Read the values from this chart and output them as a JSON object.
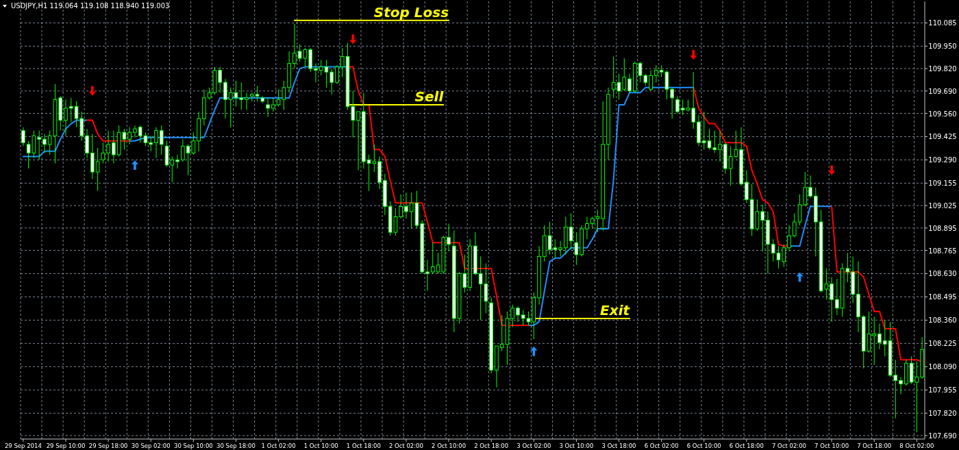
{
  "chart_data": {
    "type": "candlestick",
    "title": "USDJPY,H1 119.064 119.108 118.940 119.003",
    "categories": [
      "29 Sep 2014",
      null,
      null,
      null,
      null,
      null,
      null,
      null,
      "29 Sep 10:00",
      null,
      null,
      null,
      null,
      null,
      null,
      null,
      "29 Sep 18:00",
      null,
      null,
      null,
      null,
      null,
      null,
      null,
      "30 Sep 02:00",
      null,
      null,
      null,
      null,
      null,
      null,
      null,
      "30 Sep 10:00",
      null,
      null,
      null,
      null,
      null,
      null,
      null,
      "30 Sep 18:00",
      null,
      null,
      null,
      null,
      null,
      null,
      null,
      "1 Oct 02:00",
      null,
      null,
      null,
      null,
      null,
      null,
      null,
      "1 Oct 10:00",
      null,
      null,
      null,
      null,
      null,
      null,
      null,
      "1 Oct 18:00",
      null,
      null,
      null,
      null,
      null,
      null,
      null,
      "2 Oct 02:00",
      null,
      null,
      null,
      null,
      null,
      null,
      null,
      "2 Oct 10:00",
      null,
      null,
      null,
      null,
      null,
      null,
      null,
      "2 Oct 18:00",
      null,
      null,
      null,
      null,
      null,
      null,
      null,
      "3 Oct 02:00",
      null,
      null,
      null,
      null,
      null,
      null,
      null,
      "3 Oct 10:00",
      null,
      null,
      null,
      null,
      null,
      null,
      null,
      "3 Oct 18:00",
      null,
      null,
      null,
      null,
      null,
      null,
      null,
      "6 Oct 02:00",
      null,
      null,
      null,
      null,
      null,
      null,
      null,
      "6 Oct 10:00",
      null,
      null,
      null,
      null,
      null,
      null,
      null,
      "6 Oct 18:00",
      null,
      null,
      null,
      null,
      null,
      null,
      null,
      "7 Oct 02:00",
      null,
      null,
      null,
      null,
      null,
      null,
      null,
      "7 Oct 10:00",
      null,
      null,
      null,
      null,
      null,
      null,
      null,
      "7 Oct 18:00",
      null,
      null,
      null,
      null,
      null,
      null,
      null,
      "8 Oct 02:00",
      null
    ],
    "ohlc": [
      [
        109.46,
        109.48,
        109.37,
        109.39
      ],
      [
        109.38,
        109.4,
        109.24,
        109.33
      ],
      [
        109.33,
        109.46,
        109.3,
        109.43
      ],
      [
        109.42,
        109.46,
        109.29,
        109.41
      ],
      [
        109.41,
        109.44,
        109.33,
        109.38
      ],
      [
        109.38,
        109.46,
        109.32,
        109.43
      ],
      [
        109.43,
        109.73,
        109.27,
        109.64
      ],
      [
        109.65,
        109.66,
        109.46,
        109.52
      ],
      [
        109.52,
        109.64,
        109.43,
        109.59
      ],
      [
        109.6,
        109.65,
        109.51,
        109.59
      ],
      [
        109.6,
        109.63,
        109.48,
        109.53
      ],
      [
        109.53,
        109.57,
        109.4,
        109.43
      ],
      [
        109.43,
        109.47,
        109.3,
        109.33
      ],
      [
        109.33,
        109.44,
        109.18,
        109.22
      ],
      [
        109.22,
        109.36,
        109.11,
        109.28
      ],
      [
        109.29,
        109.39,
        109.27,
        109.33
      ],
      [
        109.33,
        109.46,
        109.28,
        109.38
      ],
      [
        109.39,
        109.46,
        109.27,
        109.32
      ],
      [
        109.32,
        109.49,
        109.31,
        109.45
      ],
      [
        109.45,
        109.47,
        109.35,
        109.41
      ],
      [
        109.41,
        109.48,
        109.38,
        109.45
      ],
      [
        109.45,
        109.49,
        109.42,
        109.47
      ],
      [
        109.48,
        109.49,
        109.39,
        109.43
      ],
      [
        109.43,
        109.45,
        109.37,
        109.39
      ],
      [
        109.39,
        109.43,
        109.34,
        109.38
      ],
      [
        109.39,
        109.48,
        109.3,
        109.46
      ],
      [
        109.46,
        109.49,
        109.32,
        109.38
      ],
      [
        109.37,
        109.4,
        109.25,
        109.26
      ],
      [
        109.26,
        109.31,
        109.16,
        109.29
      ],
      [
        109.29,
        109.32,
        109.24,
        109.28
      ],
      [
        109.29,
        109.41,
        109.28,
        109.37
      ],
      [
        109.37,
        109.38,
        109.2,
        109.33
      ],
      [
        109.33,
        109.45,
        109.32,
        109.4
      ],
      [
        109.4,
        109.57,
        109.34,
        109.53
      ],
      [
        109.53,
        109.7,
        109.49,
        109.65
      ],
      [
        109.65,
        109.71,
        109.64,
        109.68
      ],
      [
        109.68,
        109.83,
        109.67,
        109.81
      ],
      [
        109.81,
        109.83,
        109.68,
        109.74
      ],
      [
        109.74,
        109.76,
        109.53,
        109.64
      ],
      [
        109.64,
        109.71,
        109.48,
        109.68
      ],
      [
        109.68,
        109.75,
        109.6,
        109.65
      ],
      [
        109.65,
        109.74,
        109.58,
        109.64
      ],
      [
        109.64,
        109.68,
        109.58,
        109.65
      ],
      [
        109.66,
        109.68,
        109.63,
        109.67
      ],
      [
        109.67,
        109.72,
        109.63,
        109.66
      ],
      [
        109.65,
        109.66,
        109.62,
        109.63
      ],
      [
        109.61,
        109.65,
        109.54,
        109.59
      ],
      [
        109.59,
        109.65,
        109.57,
        109.61
      ],
      [
        109.61,
        109.7,
        109.6,
        109.64
      ],
      [
        109.64,
        109.75,
        109.58,
        109.71
      ],
      [
        109.71,
        109.92,
        109.68,
        109.85
      ],
      [
        109.85,
        110.08,
        109.82,
        109.91
      ],
      [
        109.92,
        109.96,
        109.86,
        109.88
      ],
      [
        109.88,
        109.94,
        109.83,
        109.93
      ],
      [
        109.93,
        109.94,
        109.8,
        109.82
      ],
      [
        109.82,
        109.85,
        109.74,
        109.81
      ],
      [
        109.81,
        109.87,
        109.78,
        109.83
      ],
      [
        109.83,
        109.87,
        109.71,
        109.8
      ],
      [
        109.8,
        109.82,
        109.67,
        109.74
      ],
      [
        109.74,
        109.84,
        109.73,
        109.83
      ],
      [
        109.83,
        109.94,
        109.77,
        109.89
      ],
      [
        109.89,
        109.97,
        109.58,
        109.6
      ],
      [
        109.6,
        109.69,
        109.42,
        109.52
      ],
      [
        109.52,
        109.57,
        109.23,
        109.57
      ],
      [
        109.57,
        109.68,
        109.24,
        109.28
      ],
      [
        109.29,
        109.32,
        109.11,
        109.27
      ],
      [
        109.27,
        109.38,
        109.22,
        109.28
      ],
      [
        109.28,
        109.31,
        109.12,
        109.16
      ],
      [
        109.17,
        109.21,
        108.97,
        109.02
      ],
      [
        109.02,
        109.05,
        108.85,
        108.87
      ],
      [
        108.87,
        109.01,
        108.85,
        108.96
      ],
      [
        108.96,
        109.09,
        108.95,
        109.02
      ],
      [
        109.02,
        109.1,
        108.95,
        108.99
      ],
      [
        108.99,
        109.1,
        108.89,
        109.04
      ],
      [
        109.04,
        109.11,
        108.89,
        108.91
      ],
      [
        108.92,
        108.94,
        108.63,
        108.64
      ],
      [
        108.64,
        108.71,
        108.53,
        108.63
      ],
      [
        108.64,
        108.81,
        108.63,
        108.67
      ],
      [
        108.64,
        108.75,
        108.63,
        108.68
      ],
      [
        108.64,
        108.85,
        108.63,
        108.84
      ],
      [
        108.84,
        108.92,
        108.76,
        108.8
      ],
      [
        108.79,
        108.88,
        108.29,
        108.37
      ],
      [
        108.37,
        108.64,
        108.34,
        108.63
      ],
      [
        108.63,
        108.74,
        108.52,
        108.55
      ],
      [
        108.55,
        108.83,
        108.53,
        108.79
      ],
      [
        108.79,
        108.87,
        108.62,
        108.63
      ],
      [
        108.63,
        108.73,
        108.36,
        108.57
      ],
      [
        108.57,
        108.69,
        108.4,
        108.47
      ],
      [
        108.46,
        108.49,
        108.05,
        108.07
      ],
      [
        108.07,
        108.21,
        107.97,
        108.21
      ],
      [
        108.2,
        108.39,
        108.18,
        108.22
      ],
      [
        108.22,
        108.41,
        108.1,
        108.37
      ],
      [
        108.37,
        108.45,
        108.32,
        108.43
      ],
      [
        108.43,
        108.44,
        108.35,
        108.39
      ],
      [
        108.39,
        108.42,
        108.33,
        108.37
      ],
      [
        108.37,
        108.41,
        108.33,
        108.35
      ],
      [
        108.35,
        108.52,
        108.25,
        108.49
      ],
      [
        108.49,
        108.79,
        108.45,
        108.73
      ],
      [
        108.73,
        108.91,
        108.7,
        108.85
      ],
      [
        108.85,
        108.93,
        108.74,
        108.77
      ],
      [
        108.78,
        108.83,
        108.72,
        108.77
      ],
      [
        108.77,
        108.82,
        108.73,
        108.78
      ],
      [
        108.78,
        108.96,
        108.74,
        108.9
      ],
      [
        108.9,
        108.98,
        108.77,
        108.82
      ],
      [
        108.81,
        108.87,
        108.68,
        108.74
      ],
      [
        108.74,
        108.91,
        108.73,
        108.89
      ],
      [
        108.89,
        108.96,
        108.83,
        108.92
      ],
      [
        108.92,
        108.96,
        108.89,
        108.95
      ],
      [
        108.95,
        109.0,
        108.87,
        108.96
      ],
      [
        108.95,
        109.63,
        108.88,
        109.38
      ],
      [
        109.38,
        109.71,
        109.29,
        109.67
      ],
      [
        109.7,
        109.89,
        109.65,
        109.74
      ],
      [
        109.74,
        109.79,
        109.64,
        109.69
      ],
      [
        109.7,
        109.88,
        109.69,
        109.77
      ],
      [
        109.76,
        109.79,
        109.68,
        109.69
      ],
      [
        109.69,
        109.86,
        109.68,
        109.85
      ],
      [
        109.85,
        109.86,
        109.74,
        109.78
      ],
      [
        109.78,
        109.79,
        109.72,
        109.74
      ],
      [
        109.7,
        109.81,
        109.69,
        109.78
      ],
      [
        109.78,
        109.84,
        109.74,
        109.81
      ],
      [
        109.81,
        109.84,
        109.77,
        109.8
      ],
      [
        109.8,
        109.81,
        109.64,
        109.7
      ],
      [
        109.7,
        109.71,
        109.53,
        109.65
      ],
      [
        109.64,
        109.66,
        109.56,
        109.57
      ],
      [
        109.59,
        109.64,
        109.55,
        109.58
      ],
      [
        109.58,
        109.64,
        109.57,
        109.59
      ],
      [
        109.59,
        109.8,
        109.47,
        109.51
      ],
      [
        109.51,
        109.55,
        109.37,
        109.39
      ],
      [
        109.4,
        109.57,
        109.35,
        109.39
      ],
      [
        109.4,
        109.47,
        109.35,
        109.36
      ],
      [
        109.36,
        109.46,
        109.33,
        109.35
      ],
      [
        109.35,
        109.46,
        109.28,
        109.38
      ],
      [
        109.38,
        109.39,
        109.21,
        109.24
      ],
      [
        109.24,
        109.37,
        109.14,
        109.31
      ],
      [
        109.31,
        109.46,
        109.3,
        109.35
      ],
      [
        109.35,
        109.48,
        109.14,
        109.15
      ],
      [
        109.16,
        109.23,
        109.04,
        109.06
      ],
      [
        109.06,
        109.15,
        108.85,
        108.89
      ],
      [
        108.89,
        109.06,
        108.88,
        108.99
      ],
      [
        108.99,
        109.03,
        108.76,
        108.94
      ],
      [
        108.94,
        108.99,
        108.63,
        108.8
      ],
      [
        108.8,
        108.83,
        108.7,
        108.75
      ],
      [
        108.75,
        108.79,
        108.66,
        108.71
      ],
      [
        108.7,
        108.8,
        108.67,
        108.78
      ],
      [
        108.78,
        108.91,
        108.76,
        108.85
      ],
      [
        108.85,
        108.98,
        108.84,
        108.93
      ],
      [
        108.93,
        109.09,
        108.91,
        109.03
      ],
      [
        109.03,
        109.22,
        109.02,
        109.13
      ],
      [
        109.13,
        109.2,
        109.07,
        109.08
      ],
      [
        109.08,
        109.13,
        108.73,
        108.93
      ],
      [
        108.93,
        109.0,
        108.52,
        108.53
      ],
      [
        108.54,
        108.66,
        108.48,
        108.57
      ],
      [
        108.57,
        108.61,
        108.35,
        108.48
      ],
      [
        108.48,
        108.6,
        108.39,
        108.43
      ],
      [
        108.43,
        108.69,
        108.38,
        108.66
      ],
      [
        108.66,
        108.75,
        108.58,
        108.64
      ],
      [
        108.64,
        108.73,
        108.46,
        108.51
      ],
      [
        108.51,
        108.7,
        108.29,
        108.38
      ],
      [
        108.38,
        108.39,
        108.08,
        108.18
      ],
      [
        108.18,
        108.41,
        108.17,
        108.28
      ],
      [
        108.27,
        108.38,
        108.1,
        108.28
      ],
      [
        108.28,
        108.34,
        108.19,
        108.23
      ],
      [
        108.24,
        108.36,
        108.15,
        108.22
      ],
      [
        108.24,
        108.35,
        108.03,
        108.04
      ],
      [
        108.04,
        108.13,
        107.79,
        108.01
      ],
      [
        108.01,
        108.03,
        107.93,
        107.99
      ],
      [
        107.99,
        108.13,
        107.98,
        108.11
      ],
      [
        108.11,
        108.15,
        107.99,
        108.0
      ],
      [
        108.0,
        108.12,
        107.71,
        108.03
      ],
      [
        108.03,
        108.26,
        108.02,
        108.19
      ]
    ],
    "color": "#00ff00",
    "ylim": [
      107.67,
      110.21
    ],
    "yticks": [
      110.085,
      {
        "value": 109.95,
        "label": "109.950"
      },
      {
        "value": 109.82,
        "label": "109.820"
      },
      {
        "value": 109.69,
        "label": "109.690"
      },
      {
        "value": 109.56,
        "label": "109.560"
      },
      109.425,
      {
        "value": 109.29,
        "label": "109.290"
      },
      109.155,
      109.025,
      108.895,
      108.765,
      {
        "value": 108.63,
        "label": "108.630"
      },
      108.495,
      {
        "value": 108.36,
        "label": "108.360"
      },
      108.225,
      {
        "value": 108.09,
        "label": "108.090"
      },
      107.955,
      {
        "value": 107.82,
        "label": "107.820"
      },
      {
        "value": 107.69,
        "label": "107.690"
      }
    ],
    "grid": true,
    "series": [
      {
        "type": "line",
        "color": "#1e90ff",
        "values": [
          109.31,
          109.31,
          109.31,
          109.31,
          109.34,
          109.34,
          109.34,
          109.41,
          109.47,
          109.5,
          109.52,
          109.52,
          109.52,
          null,
          null,
          null,
          null,
          null,
          null,
          null,
          109.4,
          109.4,
          109.41,
          109.42,
          109.42,
          109.42,
          109.42,
          109.42,
          109.42,
          109.42,
          109.42,
          109.42,
          109.42,
          109.42,
          109.42,
          109.5,
          109.58,
          109.65,
          109.65,
          109.65,
          109.65,
          109.65,
          109.65,
          109.65,
          109.65,
          109.65,
          109.65,
          109.65,
          109.65,
          109.65,
          109.65,
          109.74,
          109.82,
          109.83,
          109.83,
          109.83,
          109.83,
          109.83,
          109.83,
          109.83,
          109.83,
          109.83,
          null,
          null,
          null,
          null,
          null,
          null,
          null,
          null,
          null,
          null,
          null,
          null,
          null,
          null,
          null,
          null,
          null,
          null,
          null,
          null,
          null,
          null,
          null,
          null,
          null,
          null,
          null,
          null,
          null,
          null,
          null,
          null,
          null,
          108.33,
          108.33,
          108.35,
          108.53,
          108.7,
          108.72,
          108.72,
          108.75,
          108.78,
          108.78,
          108.78,
          108.78,
          108.83,
          108.89,
          108.89,
          108.89,
          109.18,
          109.61,
          109.61,
          109.68,
          109.68,
          109.68,
          109.71,
          109.71,
          109.71,
          109.71,
          109.71,
          109.71,
          109.71,
          109.71,
          109.71,
          109.71,
          null,
          null,
          null,
          null,
          null,
          null,
          null,
          null,
          null,
          null,
          null,
          null,
          null,
          null,
          null,
          null,
          null,
          108.79,
          108.79,
          108.79,
          108.91,
          109.02,
          109.02,
          109.02,
          109.02,
          109.02,
          null,
          null,
          null,
          null,
          null,
          null,
          null,
          null,
          null,
          null,
          null,
          null,
          null,
          null,
          null,
          null,
          null
        ]
      },
      {
        "type": "line",
        "color": "#ff0000",
        "values": [
          null,
          null,
          null,
          null,
          null,
          null,
          null,
          null,
          null,
          null,
          null,
          null,
          109.52,
          109.52,
          109.44,
          109.4,
          109.4,
          109.4,
          109.4,
          109.4,
          109.4,
          null,
          null,
          null,
          null,
          null,
          null,
          null,
          null,
          null,
          null,
          null,
          null,
          null,
          null,
          null,
          null,
          null,
          null,
          null,
          null,
          null,
          null,
          null,
          null,
          null,
          null,
          null,
          null,
          null,
          null,
          null,
          null,
          null,
          null,
          null,
          null,
          null,
          null,
          null,
          null,
          109.83,
          109.83,
          109.69,
          109.61,
          109.61,
          109.35,
          109.35,
          109.31,
          109.17,
          109.04,
          109.04,
          109.04,
          109.04,
          109.04,
          109.04,
          108.93,
          108.81,
          108.81,
          108.81,
          108.81,
          108.81,
          108.81,
          108.66,
          108.66,
          108.66,
          108.66,
          108.66,
          108.66,
          108.5,
          108.33,
          108.33,
          108.33,
          108.33,
          108.33,
          108.33,
          null,
          null,
          null,
          null,
          null,
          null,
          null,
          null,
          null,
          null,
          null,
          null,
          null,
          null,
          null,
          null,
          null,
          null,
          null,
          null,
          null,
          null,
          null,
          null,
          null,
          null,
          null,
          null,
          null,
          null,
          109.71,
          109.59,
          109.54,
          109.5,
          109.5,
          109.46,
          109.39,
          109.39,
          109.39,
          109.39,
          109.37,
          109.23,
          109.15,
          109.06,
          109.04,
          108.99,
          108.8,
          108.79,
          108.79,
          null,
          null,
          null,
          null,
          null,
          null,
          null,
          109.02,
          108.64,
          108.64,
          108.64,
          108.64,
          108.64,
          108.61,
          108.51,
          108.41,
          108.41,
          108.31,
          108.31,
          108.31,
          108.13,
          108.13,
          108.13,
          108.13,
          108.12
        ]
      },
      {
        "type": "line",
        "name": "Stop Loss",
        "color": "#ffff00",
        "values": [
          null,
          null,
          null,
          null,
          null,
          null,
          null,
          null,
          null,
          null,
          null,
          null,
          null,
          null,
          null,
          null,
          null,
          null,
          null,
          null,
          null,
          null,
          null,
          null,
          null,
          null,
          null,
          null,
          null,
          null,
          null,
          null,
          null,
          null,
          null,
          null,
          null,
          null,
          null,
          null,
          null,
          null,
          null,
          null,
          null,
          null,
          null,
          null,
          null,
          null,
          null,
          110.1,
          110.1,
          110.1,
          110.1,
          110.1,
          110.1,
          110.1,
          110.1,
          110.1,
          110.1,
          110.1,
          110.1,
          110.1,
          110.1,
          110.1,
          110.1,
          110.1,
          110.1,
          110.1,
          110.1,
          110.1,
          110.1,
          110.1,
          110.1,
          110.1,
          110.1,
          110.1,
          110.1,
          110.1,
          110.1,
          null,
          null,
          null,
          null,
          null,
          null,
          null,
          null,
          null,
          null,
          null,
          null,
          null,
          null,
          null,
          null,
          null,
          null,
          null,
          null,
          null,
          null,
          null,
          null,
          null,
          null,
          null,
          null,
          null,
          null,
          null,
          null,
          null,
          null,
          null,
          null,
          null,
          null,
          null,
          null,
          null,
          null,
          null,
          null,
          null,
          null,
          null,
          null,
          null,
          null,
          null,
          null,
          null,
          null,
          null,
          null,
          null,
          null,
          null,
          null,
          null,
          null,
          null,
          null,
          null,
          null,
          null,
          null,
          null,
          null,
          null,
          null,
          null,
          null,
          null,
          null,
          null,
          null,
          null,
          null,
          null,
          null,
          null,
          null,
          null,
          null,
          null,
          null,
          null
        ]
      },
      {
        "type": "line",
        "name": "Sell",
        "color": "#ffff00",
        "values": [
          null,
          null,
          null,
          null,
          null,
          null,
          null,
          null,
          null,
          null,
          null,
          null,
          null,
          null,
          null,
          null,
          null,
          null,
          null,
          null,
          null,
          null,
          null,
          null,
          null,
          null,
          null,
          null,
          null,
          null,
          null,
          null,
          null,
          null,
          null,
          null,
          null,
          null,
          null,
          null,
          null,
          null,
          null,
          null,
          null,
          null,
          null,
          null,
          null,
          null,
          null,
          null,
          null,
          null,
          null,
          null,
          null,
          null,
          null,
          null,
          null,
          109.61,
          109.61,
          109.61,
          109.61,
          109.61,
          109.61,
          109.61,
          109.61,
          109.61,
          109.61,
          109.61,
          109.61,
          109.61,
          109.61,
          109.61,
          109.61,
          109.61,
          109.61,
          109.61,
          null,
          null,
          null,
          null,
          null,
          null,
          null,
          null,
          null,
          null,
          null,
          null,
          null,
          null,
          null,
          null,
          null,
          null,
          null,
          null,
          null,
          null,
          null,
          null,
          null,
          null,
          null,
          null,
          null,
          null,
          null,
          null,
          null,
          null,
          null,
          null,
          null,
          null,
          null,
          null,
          null,
          null,
          null,
          null,
          null,
          null,
          null,
          null,
          null,
          null,
          null,
          null,
          null,
          null,
          null,
          null,
          null,
          null,
          null,
          null,
          null,
          null,
          null,
          null,
          null,
          null,
          null,
          null,
          null,
          null,
          null,
          null,
          null,
          null,
          null,
          null,
          null,
          null,
          null,
          null,
          null,
          null,
          null,
          null,
          null,
          null,
          null,
          null,
          null,
          null
        ]
      },
      {
        "type": "line",
        "name": "Exit",
        "color": "#ffff00",
        "values": [
          null,
          null,
          null,
          null,
          null,
          null,
          null,
          null,
          null,
          null,
          null,
          null,
          null,
          null,
          null,
          null,
          null,
          null,
          null,
          null,
          null,
          null,
          null,
          null,
          null,
          null,
          null,
          null,
          null,
          null,
          null,
          null,
          null,
          null,
          null,
          null,
          null,
          null,
          null,
          null,
          null,
          null,
          null,
          null,
          null,
          null,
          null,
          null,
          null,
          null,
          null,
          null,
          null,
          null,
          null,
          null,
          null,
          null,
          null,
          null,
          null,
          null,
          null,
          null,
          null,
          null,
          null,
          null,
          null,
          null,
          null,
          null,
          null,
          null,
          null,
          null,
          null,
          null,
          null,
          null,
          null,
          null,
          null,
          null,
          null,
          null,
          null,
          null,
          null,
          null,
          null,
          null,
          null,
          null,
          null,
          null,
          108.37,
          108.37,
          108.37,
          108.37,
          108.37,
          108.37,
          108.37,
          108.37,
          108.37,
          108.37,
          108.37,
          108.37,
          108.37,
          108.37,
          108.37,
          108.37,
          108.37,
          108.37,
          108.37,
          null,
          null,
          null,
          null,
          null,
          null,
          null,
          null,
          null,
          null,
          null,
          null,
          null,
          null,
          null,
          null,
          null,
          null,
          null,
          null,
          null,
          null,
          null,
          null,
          null,
          null,
          null,
          null,
          null,
          null,
          null,
          null,
          null,
          null,
          null,
          null,
          null,
          null,
          null,
          null,
          null,
          null,
          null,
          null,
          null,
          null,
          null,
          null,
          null,
          null,
          null,
          null,
          null,
          null,
          null
        ]
      },
      {
        "type": "scatter",
        "marker": "triangle",
        "color": "#1e90ff",
        "values": [
          null,
          null,
          null,
          null,
          null,
          null,
          null,
          null,
          null,
          null,
          null,
          null,
          null,
          null,
          null,
          null,
          null,
          null,
          null,
          null,
          null,
          109.26,
          null,
          null,
          null,
          null,
          null,
          null,
          null,
          null,
          null,
          null,
          null,
          null,
          null,
          null,
          null,
          null,
          null,
          null,
          null,
          null,
          null,
          null,
          null,
          null,
          null,
          null,
          null,
          null,
          null,
          null,
          null,
          null,
          null,
          null,
          null,
          null,
          null,
          null,
          null,
          null,
          null,
          null,
          null,
          null,
          null,
          null,
          null,
          null,
          null,
          null,
          null,
          null,
          null,
          null,
          null,
          null,
          null,
          null,
          null,
          null,
          null,
          null,
          null,
          null,
          null,
          null,
          null,
          null,
          null,
          null,
          null,
          null,
          null,
          null,
          108.18,
          null,
          null,
          null,
          null,
          null,
          null,
          null,
          null,
          null,
          null,
          null,
          null,
          null,
          null,
          null,
          null,
          null,
          null,
          null,
          null,
          null,
          null,
          null,
          null,
          null,
          null,
          null,
          null,
          null,
          null,
          null,
          null,
          null,
          null,
          null,
          null,
          null,
          null,
          null,
          null,
          null,
          null,
          null,
          null,
          null,
          null,
          null,
          null,
          null,
          108.61,
          null,
          null,
          null,
          null,
          null,
          null,
          null,
          null,
          null,
          null,
          null,
          null,
          null,
          null,
          null,
          null,
          null,
          null,
          null,
          null,
          null,
          null,
          null
        ]
      },
      {
        "type": "scatter",
        "marker": "triangle-down",
        "color": "#ff0000",
        "values": [
          null,
          null,
          null,
          null,
          null,
          null,
          null,
          null,
          null,
          null,
          null,
          null,
          null,
          109.69,
          null,
          null,
          null,
          null,
          null,
          null,
          null,
          null,
          null,
          null,
          null,
          null,
          null,
          null,
          null,
          null,
          null,
          null,
          null,
          null,
          null,
          null,
          null,
          null,
          null,
          null,
          null,
          null,
          null,
          null,
          null,
          null,
          null,
          null,
          null,
          null,
          null,
          null,
          null,
          null,
          null,
          null,
          null,
          null,
          null,
          null,
          null,
          null,
          109.99,
          null,
          null,
          null,
          null,
          null,
          null,
          null,
          null,
          null,
          null,
          null,
          null,
          null,
          null,
          null,
          null,
          null,
          null,
          null,
          null,
          null,
          null,
          null,
          null,
          null,
          null,
          null,
          null,
          null,
          null,
          null,
          null,
          null,
          null,
          null,
          null,
          null,
          null,
          null,
          null,
          null,
          null,
          null,
          null,
          null,
          null,
          null,
          null,
          null,
          null,
          null,
          null,
          null,
          null,
          null,
          null,
          null,
          null,
          null,
          null,
          null,
          null,
          null,
          109.9,
          null,
          null,
          null,
          null,
          null,
          null,
          null,
          null,
          null,
          null,
          null,
          null,
          null,
          null,
          null,
          null,
          null,
          null,
          null,
          null,
          null,
          null,
          null,
          null,
          null,
          109.23,
          null,
          null,
          null,
          null,
          null,
          null,
          null,
          null,
          null,
          null,
          null,
          null,
          null,
          null,
          null,
          null,
          null
        ]
      }
    ]
  }
}
